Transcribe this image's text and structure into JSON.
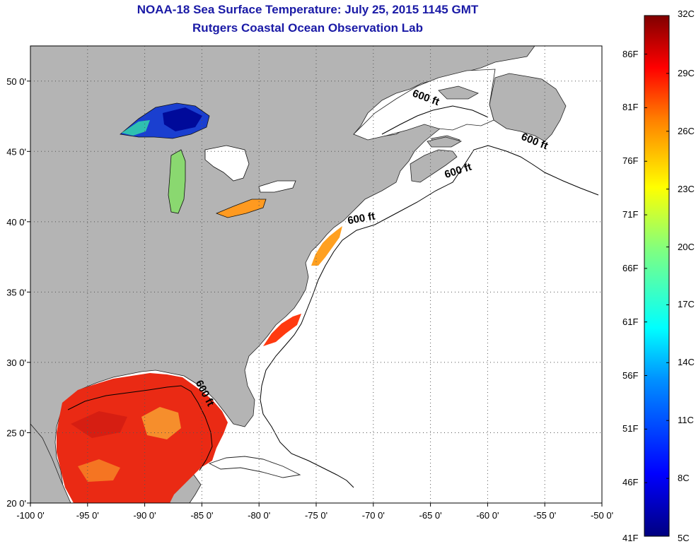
{
  "title": "NOAA-18 Sea Surface Temperature:  July 25, 2015 1145 GMT",
  "subtitle": "Rutgers Coastal Ocean Observation Lab",
  "axes": {
    "lon_labels": [
      "-100 0'",
      "-95 0'",
      "-90 0'",
      "-85 0'",
      "-80 0'",
      "-75 0'",
      "-70 0'",
      "-65 0'",
      "-60 0'",
      "-55 0'",
      "-50 0'"
    ],
    "lat_labels": [
      "20 0'",
      "25 0'",
      "30 0'",
      "35 0'",
      "40 0'",
      "45 0'",
      "50 0'"
    ],
    "lon_values": [
      -100,
      -95,
      -90,
      -85,
      -80,
      -75,
      -70,
      -65,
      -60,
      -55,
      -50
    ],
    "lat_values": [
      20,
      25,
      30,
      35,
      40,
      45,
      50
    ],
    "lon_range": [
      -100,
      -50
    ],
    "lat_range": [
      20,
      52.5
    ]
  },
  "contour": {
    "label": "600 ft",
    "labels": [
      {
        "text": "600 ft",
        "lon": -65.5,
        "lat": 48.6,
        "angle": 20
      },
      {
        "text": "600 ft",
        "lon": -56.0,
        "lat": 45.5,
        "angle": 22
      },
      {
        "text": "600 ft",
        "lon": -62.5,
        "lat": 43.4,
        "angle": -18
      },
      {
        "text": "600 ft",
        "lon": -71.0,
        "lat": 40.0,
        "angle": -10
      },
      {
        "text": "600 ft",
        "lon": -85.0,
        "lat": 27.7,
        "angle": 62
      }
    ]
  },
  "colorbar": {
    "fahrenheit_labels": [
      "86F",
      "81F",
      "76F",
      "71F",
      "66F",
      "61F",
      "56F",
      "51F",
      "46F",
      "41F"
    ],
    "celsius_labels": [
      "32C",
      "29C",
      "26C",
      "23C",
      "20C",
      "17C",
      "14C",
      "11C",
      "8C",
      "5C"
    ],
    "celsius_range": [
      5,
      32
    ],
    "colors": [
      "#000080",
      "#0000ff",
      "#0080ff",
      "#00ffff",
      "#80ff80",
      "#ffff00",
      "#ff8000",
      "#ff0000",
      "#800000"
    ]
  },
  "colors": {
    "land": "#b4b4b4",
    "ocean_no_data": "#ffffff",
    "title": "#1a1aa6",
    "grid": "#555555"
  }
}
